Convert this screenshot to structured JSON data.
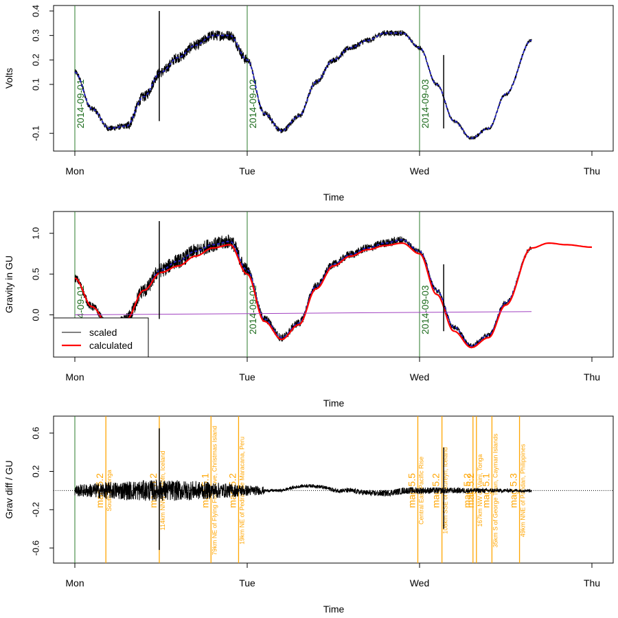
{
  "chart_data": [
    {
      "type": "line",
      "ylabel": "Volts",
      "xlabel": "Time",
      "x_ticks": [
        "Mon",
        "Tue",
        "Wed",
        "Thu"
      ],
      "xlim": [
        0,
        3
      ],
      "ylim": [
        -0.15,
        0.4
      ],
      "y_ticks": [
        "-0.1",
        "0.1",
        "0.2",
        "0.3",
        "0.4"
      ],
      "y_tick_values": [
        -0.1,
        0.1,
        0.2,
        0.3,
        0.4
      ],
      "date_markers": [
        {
          "x": 0.0,
          "label": "2014-09-01"
        },
        {
          "x": 1.0,
          "label": "2014-09-02"
        },
        {
          "x": 2.0,
          "label": "2014-09-03"
        }
      ],
      "series": [
        {
          "color": "#000000",
          "x": [
            0.0,
            0.1,
            0.2,
            0.3,
            0.4,
            0.5,
            0.6,
            0.7,
            0.8,
            0.9,
            1.0,
            1.1,
            1.2,
            1.3,
            1.4,
            1.5,
            1.6,
            1.7,
            1.8,
            1.9,
            2.0,
            2.1,
            2.2,
            2.3,
            2.4,
            2.5,
            2.65
          ],
          "y": [
            0.15,
            0.0,
            -0.08,
            -0.07,
            0.05,
            0.15,
            0.21,
            0.26,
            0.3,
            0.3,
            0.2,
            -0.02,
            -0.09,
            -0.03,
            0.11,
            0.2,
            0.25,
            0.28,
            0.31,
            0.31,
            0.25,
            0.1,
            -0.05,
            -0.12,
            -0.08,
            0.06,
            0.28
          ]
        }
      ],
      "spikes": [
        {
          "x": 0.49,
          "y_low": -0.05,
          "y_high": 0.4
        },
        {
          "x": 2.14,
          "y_low": -0.08,
          "y_high": 0.22
        }
      ]
    },
    {
      "type": "line",
      "ylabel": "Gravity in GU",
      "xlabel": "Time",
      "x_ticks": [
        "Mon",
        "Tue",
        "Wed",
        "Thu"
      ],
      "xlim": [
        0,
        3
      ],
      "ylim": [
        -0.45,
        1.2
      ],
      "y_ticks": [
        "0.0",
        "0.5",
        "1.0"
      ],
      "y_tick_values": [
        0,
        0.5,
        1.0
      ],
      "date_markers": [
        {
          "x": 0.0,
          "label": "2014-09-01"
        },
        {
          "x": 1.0,
          "label": "2014-09-02"
        },
        {
          "x": 2.0,
          "label": "2014-09-03"
        }
      ],
      "legend": {
        "position": "bottom-left",
        "entries": [
          "scaled",
          "calculated"
        ]
      },
      "series": [
        {
          "name": "scaled",
          "color": "#000000",
          "x": [
            0.0,
            0.1,
            0.2,
            0.3,
            0.4,
            0.5,
            0.6,
            0.7,
            0.8,
            0.9,
            1.0,
            1.1,
            1.2,
            1.3,
            1.4,
            1.5,
            1.6,
            1.7,
            1.8,
            1.9,
            2.0,
            2.1,
            2.2,
            2.3,
            2.4,
            2.5,
            2.65
          ],
          "y": [
            0.45,
            0.1,
            -0.15,
            -0.05,
            0.3,
            0.55,
            0.66,
            0.78,
            0.86,
            0.9,
            0.55,
            -0.05,
            -0.28,
            -0.1,
            0.35,
            0.62,
            0.74,
            0.82,
            0.88,
            0.92,
            0.78,
            0.3,
            -0.15,
            -0.38,
            -0.25,
            0.15,
            0.82
          ]
        },
        {
          "name": "calculated",
          "color": "#ff0000",
          "x": [
            0.0,
            0.1,
            0.2,
            0.3,
            0.4,
            0.5,
            0.6,
            0.7,
            0.8,
            0.9,
            1.0,
            1.1,
            1.2,
            1.3,
            1.4,
            1.5,
            1.6,
            1.7,
            1.8,
            1.9,
            2.0,
            2.1,
            2.2,
            2.3,
            2.4,
            2.5,
            2.65,
            2.75,
            2.85,
            3.0
          ],
          "y": [
            0.45,
            0.1,
            -0.15,
            -0.05,
            0.3,
            0.52,
            0.6,
            0.72,
            0.82,
            0.86,
            0.5,
            -0.08,
            -0.3,
            -0.12,
            0.32,
            0.6,
            0.72,
            0.8,
            0.85,
            0.88,
            0.75,
            0.25,
            -0.2,
            -0.4,
            -0.28,
            0.12,
            0.82,
            0.88,
            0.86,
            0.83
          ]
        },
        {
          "color": "#a040c0",
          "x": [
            0.0,
            2.65
          ],
          "y": [
            0.0,
            0.04
          ]
        }
      ],
      "spikes": [
        {
          "x": 0.49,
          "y_low": -0.05,
          "y_high": 1.15
        },
        {
          "x": 2.14,
          "y_low": -0.2,
          "y_high": 0.62
        }
      ]
    },
    {
      "type": "line",
      "ylabel": "Grav diff / GU",
      "xlabel": "Time",
      "x_ticks": [
        "Mon",
        "Tue",
        "Wed",
        "Thu"
      ],
      "xlim": [
        0,
        3
      ],
      "ylim": [
        -0.7,
        0.72
      ],
      "y_ticks": [
        "-0.6",
        "-0.2",
        "0.2",
        "0.6"
      ],
      "y_tick_values": [
        -0.6,
        -0.2,
        0.2,
        0.6
      ],
      "date_markers": [
        {
          "x": 0.0,
          "label": ""
        }
      ],
      "series": [
        {
          "color": "#000000",
          "x": [
            0.0,
            0.1,
            0.2,
            0.3,
            0.4,
            0.5,
            0.6,
            0.7,
            0.8,
            0.9,
            1.0,
            1.1,
            1.2,
            1.3,
            1.4,
            1.5,
            1.6,
            1.7,
            1.8,
            1.9,
            2.0,
            2.1,
            2.2,
            2.3,
            2.4,
            2.5,
            2.65
          ],
          "y": [
            0.0,
            0.0,
            0.0,
            0.0,
            0.0,
            0.0,
            0.0,
            0.0,
            0.0,
            0.0,
            0.0,
            0.0,
            0.0,
            0.0,
            0.0,
            0.0,
            0.0,
            0.0,
            0.0,
            0.0,
            0.0,
            0.0,
            0.0,
            0.0,
            0.0,
            0.0,
            0.0
          ]
        }
      ],
      "spikes": [
        {
          "x": 0.49,
          "y_low": -0.62,
          "y_high": 0.65
        },
        {
          "x": 2.14,
          "y_low": -0.4,
          "y_high": 0.45
        }
      ],
      "events": [
        {
          "x": 0.18,
          "mag": "mag 5.2",
          "place": "South of Tonga"
        },
        {
          "x": 0.49,
          "mag": "mag 5.2",
          "place": "114km NNW of Höfn, Iceland"
        },
        {
          "x": 0.79,
          "mag": "mag 5.1",
          "place": "79km NE of Flying Fish Cove, Christmas Island"
        },
        {
          "x": 0.95,
          "mag": "mag 5.2",
          "place": "19km NE of Pedras de Maracana, Peru"
        },
        {
          "x": 1.99,
          "mag": "mag 5.5",
          "place": "Central East Pacific Rise"
        },
        {
          "x": 2.13,
          "mag": "mag 5.2",
          "place": "108km SSE of Akureyri, Iceland"
        },
        {
          "x": 2.31,
          "mag": "mag 5.2",
          "place": ""
        },
        {
          "x": 2.33,
          "mag": "mag 5.2",
          "place": "167km NW of Vaini, Tonga"
        },
        {
          "x": 2.42,
          "mag": "mag 5.1",
          "place": "35km S of George Town, Cayman Islands"
        },
        {
          "x": 2.58,
          "mag": "mag 5.3",
          "place": "49km NNE of Pandan, Philippines"
        }
      ]
    }
  ]
}
